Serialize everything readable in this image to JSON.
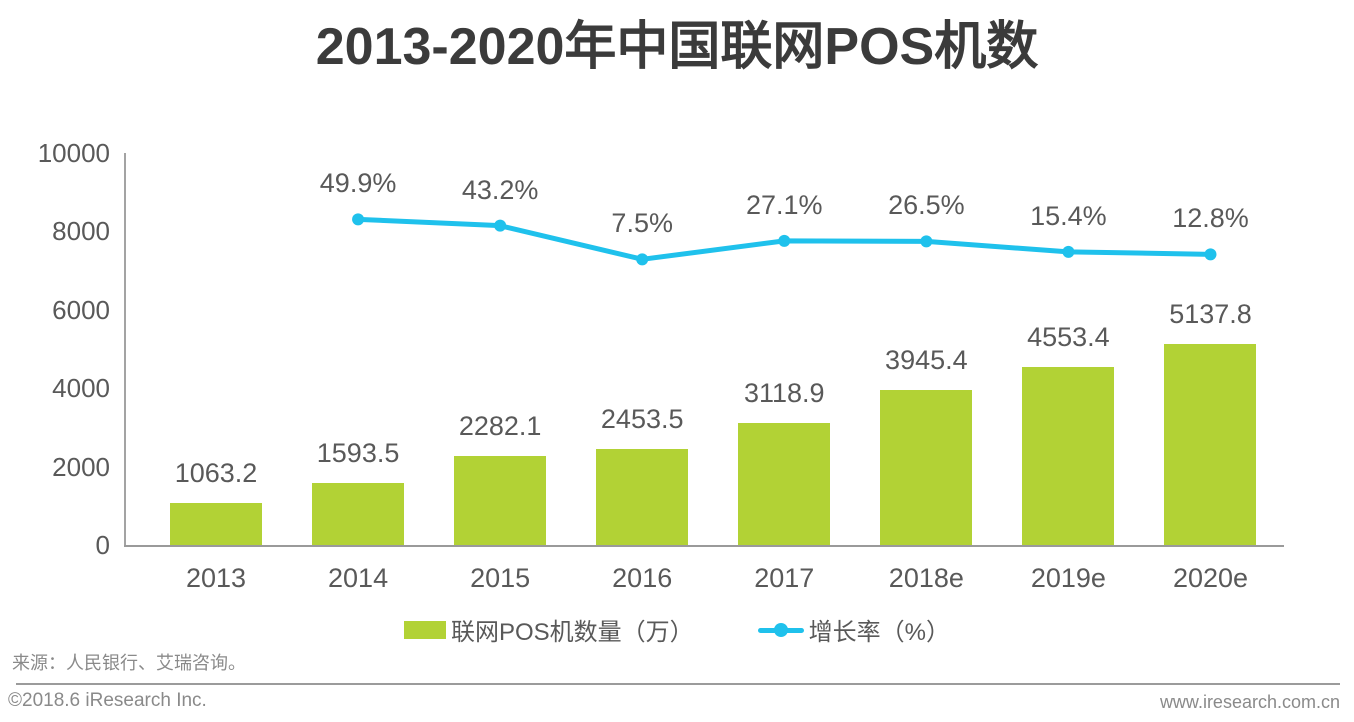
{
  "title": "2013-2020年中国联网POS机数",
  "chart_data": {
    "type": "combo",
    "categories": [
      "2013",
      "2014",
      "2015",
      "2016",
      "2017",
      "2018e",
      "2019e",
      "2020e"
    ],
    "series": [
      {
        "name": "联网POS机数量（万）",
        "type": "bar",
        "color": "#b2d235",
        "values": [
          1063.2,
          1593.5,
          2282.1,
          2453.5,
          3118.9,
          3945.4,
          4553.4,
          5137.8
        ]
      },
      {
        "name": "增长率（%）",
        "type": "line",
        "color": "#1fc1ec",
        "values": [
          null,
          49.9,
          43.2,
          7.5,
          27.1,
          26.5,
          15.4,
          12.8
        ],
        "label_suffix": "%"
      }
    ],
    "title": "2013-2020年中国联网POS机数",
    "xlabel": "",
    "ylabel": "",
    "ylim": [
      0,
      10000
    ],
    "yticks": [
      0,
      2000,
      4000,
      6000,
      8000,
      10000
    ],
    "grid": false,
    "legend_position": "bottom",
    "data_labels": true
  },
  "legend": {
    "bar_label": "联网POS机数量（万）",
    "line_label": "增长率（%）"
  },
  "source_note": "来源：人民银行、艾瑞咨询。",
  "footer": {
    "left": "©2018.6 iResearch Inc.",
    "right": "www.iresearch.com.cn"
  },
  "colors": {
    "bar": "#b2d235",
    "line": "#1fc1ec",
    "label_text": "#595959",
    "title_text": "#3b3b3b",
    "axis": "#9a9a9a",
    "footer_text": "#8a8a8a",
    "divider": "#9b9b9b"
  }
}
